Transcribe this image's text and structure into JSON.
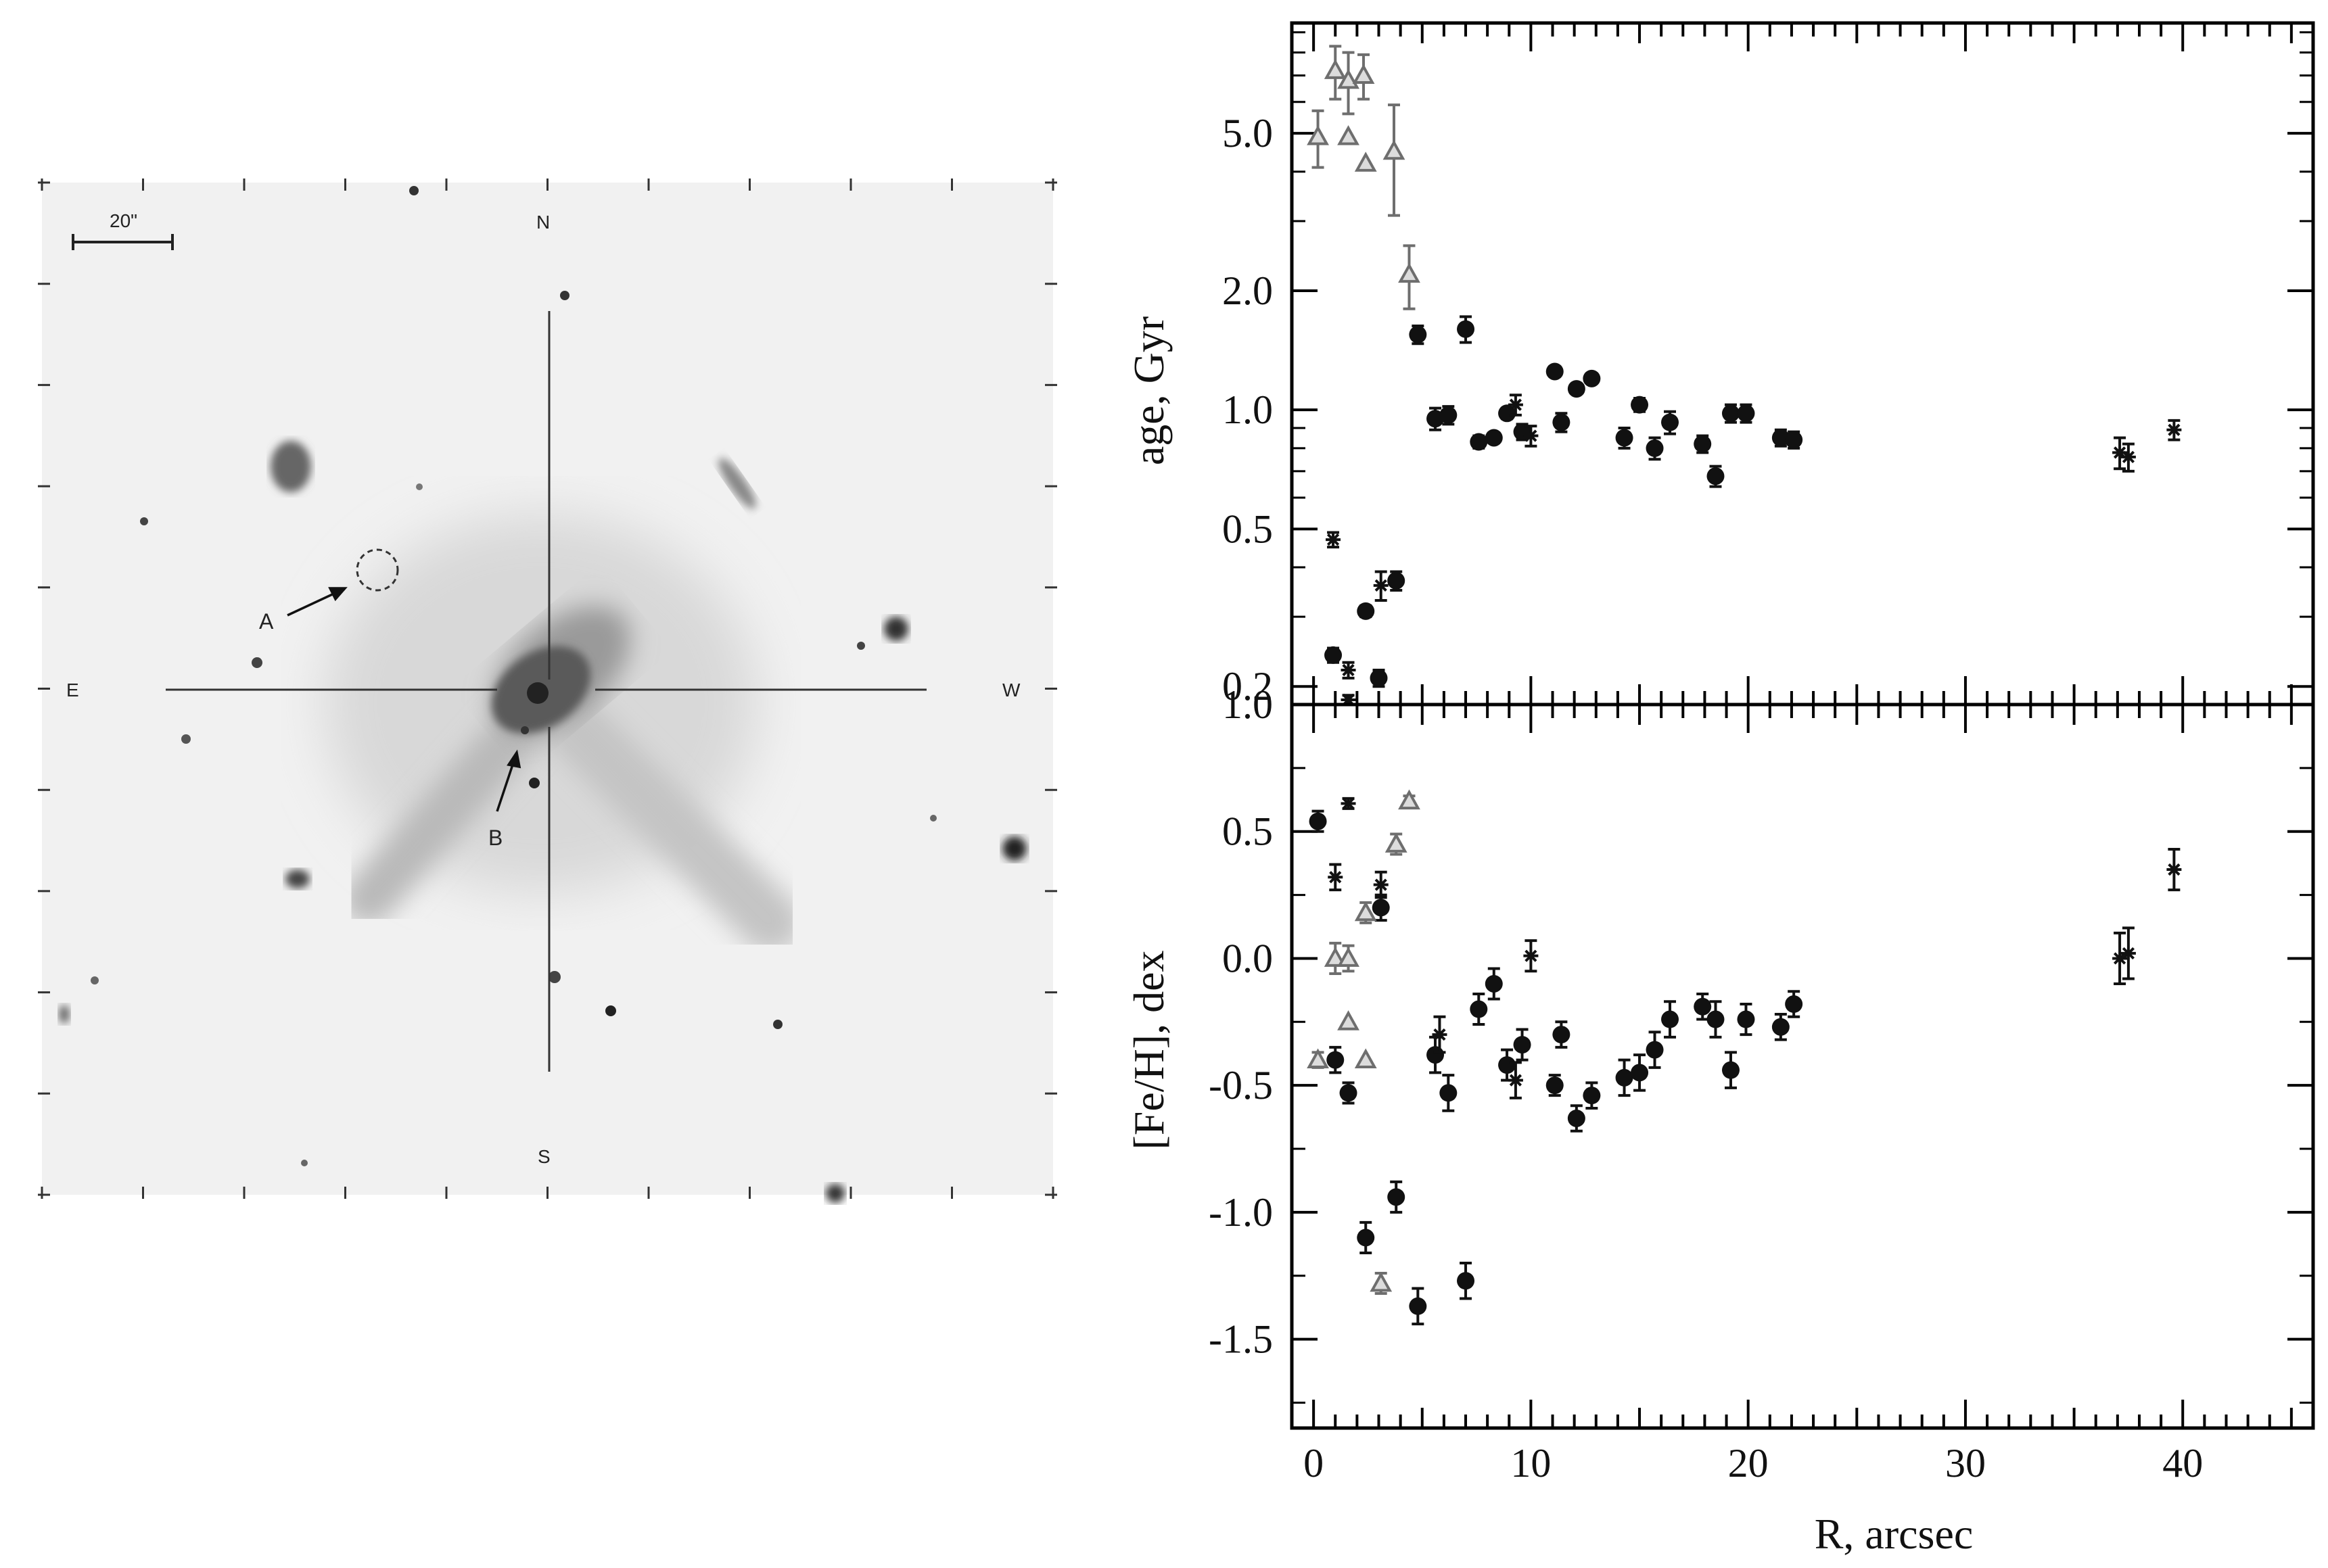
{
  "image_panel": {
    "scale_label": "20\"",
    "compass": {
      "north": "N",
      "south": "S",
      "east": "E",
      "west": "W"
    },
    "markers": {
      "a": "A",
      "b": "B"
    }
  },
  "colors": {
    "black_series": "#111111",
    "gray_series": "#6e6e6e",
    "axes": "#000000"
  },
  "chart_data": [
    {
      "type": "scatter",
      "ylabel": "age, Gyr",
      "xlabel": "",
      "xlim": [
        -1,
        46
      ],
      "ylim": [
        0.18,
        9.5
      ],
      "yscale": "log",
      "yticks": [
        0.2,
        0.5,
        1.0,
        2.0,
        5.0
      ],
      "ytick_labels": [
        "0.2",
        "0.5",
        "1.0",
        "2.0",
        "5.0"
      ],
      "series": [
        {
          "marker": "circle",
          "color": "black",
          "points": [
            {
              "x": 0.9,
              "y": 0.24,
              "err": 0.01
            },
            {
              "x": 2.4,
              "y": 0.31,
              "err": 0.01
            },
            {
              "x": 3.0,
              "y": 0.21,
              "err": 0.01
            },
            {
              "x": 3.8,
              "y": 0.37,
              "err": 0.02
            },
            {
              "x": 4.8,
              "y": 1.55,
              "err": 0.08
            },
            {
              "x": 5.6,
              "y": 0.95,
              "err": 0.06
            },
            {
              "x": 6.2,
              "y": 0.97,
              "err": 0.05
            },
            {
              "x": 7.0,
              "y": 1.6,
              "err": 0.12
            },
            {
              "x": 7.6,
              "y": 0.83,
              "err": 0.03
            },
            {
              "x": 8.3,
              "y": 0.85,
              "err": 0.02
            },
            {
              "x": 8.9,
              "y": 0.98,
              "err": 0.03
            },
            {
              "x": 9.6,
              "y": 0.88,
              "err": 0.04
            },
            {
              "x": 11.1,
              "y": 1.25,
              "err": 0.03
            },
            {
              "x": 11.4,
              "y": 0.93,
              "err": 0.05
            },
            {
              "x": 12.1,
              "y": 1.13,
              "err": 0.03
            },
            {
              "x": 12.8,
              "y": 1.2,
              "err": 0.03
            },
            {
              "x": 14.3,
              "y": 0.85,
              "err": 0.05
            },
            {
              "x": 15.0,
              "y": 1.03,
              "err": 0.04
            },
            {
              "x": 15.7,
              "y": 0.8,
              "err": 0.05
            },
            {
              "x": 16.4,
              "y": 0.93,
              "err": 0.06
            },
            {
              "x": 17.9,
              "y": 0.82,
              "err": 0.04
            },
            {
              "x": 18.5,
              "y": 0.68,
              "err": 0.04
            },
            {
              "x": 19.2,
              "y": 0.98,
              "err": 0.05
            },
            {
              "x": 19.9,
              "y": 0.98,
              "err": 0.05
            },
            {
              "x": 21.5,
              "y": 0.85,
              "err": 0.04
            },
            {
              "x": 22.1,
              "y": 0.84,
              "err": 0.04
            }
          ]
        },
        {
          "marker": "asterisk",
          "color": "black",
          "points": [
            {
              "x": 0.9,
              "y": 0.47,
              "err": 0.02
            },
            {
              "x": 1.6,
              "y": 0.22,
              "err": 0.01
            },
            {
              "x": 1.6,
              "y": 0.185,
              "err": 0.005
            },
            {
              "x": 3.1,
              "y": 0.36,
              "err": 0.03
            },
            {
              "x": 9.3,
              "y": 1.03,
              "err": 0.06
            },
            {
              "x": 10.0,
              "y": 0.86,
              "err": 0.05
            },
            {
              "x": 37.1,
              "y": 0.78,
              "err": 0.07
            },
            {
              "x": 37.5,
              "y": 0.76,
              "err": 0.06
            },
            {
              "x": 39.6,
              "y": 0.89,
              "err": 0.05
            }
          ]
        },
        {
          "marker": "triangle",
          "color": "gray",
          "points": [
            {
              "x": 0.2,
              "y": 4.9,
              "err": 0.8
            },
            {
              "x": 1.0,
              "y": 7.2,
              "err": 1.1
            },
            {
              "x": 1.6,
              "y": 6.8,
              "err": 1.2
            },
            {
              "x": 2.3,
              "y": 7.0,
              "err": 0.9
            },
            {
              "x": 3.7,
              "y": 4.5,
              "err": 1.4
            },
            {
              "x": 4.4,
              "y": 2.2,
              "err": 0.4
            },
            {
              "x": 1.6,
              "y": 4.9
            },
            {
              "x": 2.4,
              "y": 4.2
            }
          ]
        }
      ]
    },
    {
      "type": "scatter",
      "xlabel": "R, arcsec",
      "ylabel": "[Fe/H], dex",
      "xlim": [
        -1,
        46
      ],
      "ylim": [
        -1.85,
        1.0
      ],
      "xticks": [
        0,
        10,
        20,
        30,
        40
      ],
      "xtick_labels": [
        "0",
        "10",
        "20",
        "30",
        "40"
      ],
      "yticks": [
        1.0,
        0.5,
        0.0,
        -0.5,
        -1.0,
        -1.5
      ],
      "ytick_labels": [
        "1.0",
        "0.5",
        "0.0",
        "-0.5",
        "-1.0",
        "-1.5"
      ],
      "series": [
        {
          "marker": "circle",
          "color": "black",
          "points": [
            {
              "x": 0.2,
              "y": 0.54,
              "err": 0.04
            },
            {
              "x": 1.0,
              "y": -0.4,
              "err": 0.05
            },
            {
              "x": 1.6,
              "y": -0.53,
              "err": 0.04
            },
            {
              "x": 2.4,
              "y": -1.1,
              "err": 0.06
            },
            {
              "x": 3.1,
              "y": 0.2,
              "err": 0.05
            },
            {
              "x": 3.8,
              "y": -0.94,
              "err": 0.06
            },
            {
              "x": 4.8,
              "y": -1.37,
              "err": 0.07
            },
            {
              "x": 5.6,
              "y": -0.38,
              "err": 0.07
            },
            {
              "x": 6.2,
              "y": -0.53,
              "err": 0.07
            },
            {
              "x": 7.0,
              "y": -1.27,
              "err": 0.07
            },
            {
              "x": 7.6,
              "y": -0.2,
              "err": 0.06
            },
            {
              "x": 8.3,
              "y": -0.1,
              "err": 0.06
            },
            {
              "x": 8.9,
              "y": -0.42,
              "err": 0.06
            },
            {
              "x": 9.6,
              "y": -0.34,
              "err": 0.06
            },
            {
              "x": 11.1,
              "y": -0.5,
              "err": 0.04
            },
            {
              "x": 11.4,
              "y": -0.3,
              "err": 0.05
            },
            {
              "x": 12.1,
              "y": -0.63,
              "err": 0.05
            },
            {
              "x": 12.8,
              "y": -0.54,
              "err": 0.05
            },
            {
              "x": 14.3,
              "y": -0.47,
              "err": 0.07
            },
            {
              "x": 15.0,
              "y": -0.45,
              "err": 0.07
            },
            {
              "x": 15.7,
              "y": -0.36,
              "err": 0.07
            },
            {
              "x": 16.4,
              "y": -0.24,
              "err": 0.07
            },
            {
              "x": 17.9,
              "y": -0.19,
              "err": 0.05
            },
            {
              "x": 18.5,
              "y": -0.24,
              "err": 0.07
            },
            {
              "x": 19.2,
              "y": -0.44,
              "err": 0.07
            },
            {
              "x": 19.9,
              "y": -0.24,
              "err": 0.06
            },
            {
              "x": 21.5,
              "y": -0.27,
              "err": 0.05
            },
            {
              "x": 22.1,
              "y": -0.18,
              "err": 0.05
            }
          ]
        },
        {
          "marker": "asterisk",
          "color": "black",
          "points": [
            {
              "x": 1.0,
              "y": 0.32,
              "err": 0.05
            },
            {
              "x": 1.6,
              "y": 0.61,
              "err": 0.02
            },
            {
              "x": 3.1,
              "y": 0.29,
              "err": 0.05
            },
            {
              "x": 5.8,
              "y": -0.3,
              "err": 0.07
            },
            {
              "x": 9.3,
              "y": -0.48,
              "err": 0.07
            },
            {
              "x": 10.0,
              "y": 0.01,
              "err": 0.06
            },
            {
              "x": 37.1,
              "y": 0.0,
              "err": 0.1
            },
            {
              "x": 37.5,
              "y": 0.02,
              "err": 0.1
            },
            {
              "x": 39.6,
              "y": 0.35,
              "err": 0.08
            }
          ]
        },
        {
          "marker": "triangle",
          "color": "gray",
          "points": [
            {
              "x": 0.2,
              "y": -0.4,
              "err": 0.03
            },
            {
              "x": 1.0,
              "y": 0.0,
              "err": 0.06
            },
            {
              "x": 1.6,
              "y": 0.0,
              "err": 0.05
            },
            {
              "x": 2.4,
              "y": 0.18,
              "err": 0.04
            },
            {
              "x": 3.1,
              "y": -1.28,
              "err": 0.04
            },
            {
              "x": 3.8,
              "y": 0.45,
              "err": 0.04
            },
            {
              "x": 4.4,
              "y": 0.62,
              "err": 0.02
            },
            {
              "x": 1.6,
              "y": -0.25
            },
            {
              "x": 2.4,
              "y": -0.4
            }
          ]
        }
      ]
    }
  ]
}
